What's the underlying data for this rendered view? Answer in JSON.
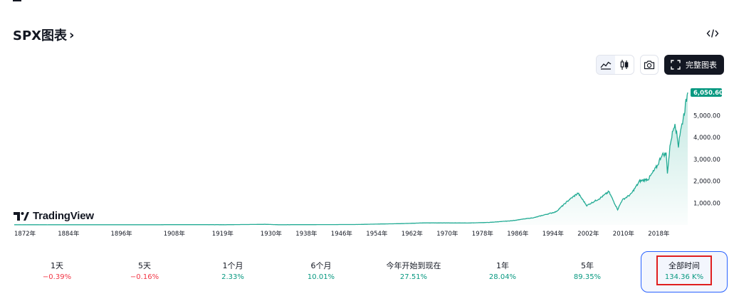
{
  "header": {
    "title": "SPX图表",
    "chevron": "›"
  },
  "toolbar": {
    "fullchart_label": "完整图表"
  },
  "logo": {
    "text": "TradingView"
  },
  "colors": {
    "line": "#22ab94",
    "positive": "#089981",
    "negative": "#f23645",
    "price_tag": "#089981",
    "selected_border": "#2962ff",
    "highlight": "#e01f1f"
  },
  "chart_data": {
    "type": "area",
    "x_ticks": [
      "1872年",
      "1884年",
      "1896年",
      "1908年",
      "1919年",
      "1930年",
      "1938年",
      "1946年",
      "1954年",
      "1962年",
      "1970年",
      "1978年",
      "1986年",
      "1994年",
      "2002年",
      "2010年",
      "2018年"
    ],
    "y_ticks": [
      "5,000.00",
      "4,000.00",
      "3,000.00",
      "2,000.00",
      "1,000.00"
    ],
    "last_price": "6,050.60",
    "x": [
      1872,
      1880,
      1890,
      1900,
      1910,
      1920,
      1929,
      1932,
      1940,
      1950,
      1955,
      1960,
      1965,
      1970,
      1975,
      1980,
      1985,
      1987,
      1990,
      1995,
      1998,
      2000,
      2002,
      2003,
      2005,
      2007,
      2009,
      2010,
      2012,
      2014,
      2016,
      2018,
      2019,
      2020,
      2020.3,
      2021,
      2022,
      2022.8,
      2023,
      2024,
      2024.9
    ],
    "y": [
      5,
      5,
      6,
      7,
      9,
      8,
      25,
      7,
      11,
      18,
      40,
      58,
      90,
      90,
      85,
      115,
      190,
      250,
      330,
      600,
      1150,
      1450,
      880,
      1000,
      1220,
      1520,
      700,
      1130,
      1400,
      2000,
      2100,
      2700,
      3200,
      3250,
      2400,
      3800,
      4700,
      3600,
      4000,
      5000,
      6050
    ]
  },
  "ranges": [
    {
      "label": "1天",
      "value": "−0.39%",
      "trend": "neg"
    },
    {
      "label": "5天",
      "value": "−0.16%",
      "trend": "neg"
    },
    {
      "label": "1个月",
      "value": "2.33%",
      "trend": "pos"
    },
    {
      "label": "6个月",
      "value": "10.01%",
      "trend": "pos"
    },
    {
      "label": "今年开始到现在",
      "value": "27.51%",
      "trend": "pos"
    },
    {
      "label": "1年",
      "value": "28.04%",
      "trend": "pos"
    },
    {
      "label": "5年",
      "value": "89.35%",
      "trend": "pos"
    },
    {
      "label": "全部时间",
      "value": "134.36 K%",
      "trend": "pos"
    }
  ]
}
